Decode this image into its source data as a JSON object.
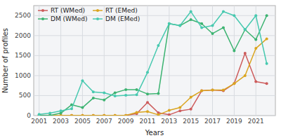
{
  "chart_data": {
    "type": "line",
    "xlabel": "Years",
    "ylabel": "Number of profiles",
    "x": [
      2001,
      2002,
      2003,
      2004,
      2005,
      2006,
      2007,
      2008,
      2009,
      2010,
      2011,
      2012,
      2013,
      2014,
      2015,
      2016,
      2017,
      2018,
      2019,
      2020,
      2021,
      2022
    ],
    "series": [
      {
        "name": "RT (WMed)",
        "color": "#cd5c5c",
        "values": [
          10,
          5,
          5,
          5,
          5,
          5,
          5,
          5,
          5,
          50,
          330,
          70,
          20,
          120,
          160,
          620,
          640,
          620,
          800,
          1560,
          850,
          800
        ]
      },
      {
        "name": "RT (EMed)",
        "color": "#daa520",
        "values": [
          5,
          5,
          5,
          5,
          5,
          5,
          5,
          5,
          5,
          80,
          100,
          20,
          130,
          200,
          460,
          620,
          640,
          640,
          800,
          1000,
          1680,
          1920
        ]
      },
      {
        "name": "DM (WMed)",
        "color": "#3cb371",
        "values": [
          5,
          5,
          60,
          270,
          200,
          440,
          390,
          570,
          650,
          650,
          540,
          550,
          2300,
          2250,
          2400,
          2300,
          2050,
          2200,
          1620,
          2150,
          1900,
          2500
        ]
      },
      {
        "name": "DM (EMed)",
        "color": "#48c9b0",
        "values": [
          30,
          60,
          120,
          170,
          870,
          590,
          570,
          490,
          510,
          520,
          1080,
          1750,
          2300,
          2250,
          2600,
          2200,
          2250,
          2600,
          2500,
          2150,
          2500,
          1300
        ]
      }
    ],
    "xlim": [
      2000.5,
      2022.8
    ],
    "xticks": [
      2001,
      2003,
      2005,
      2007,
      2009,
      2011,
      2013,
      2015,
      2017,
      2019,
      2021
    ],
    "ylim": [
      0,
      2750
    ],
    "yticks": [
      0,
      500,
      1000,
      1500,
      2000,
      2500
    ],
    "marker": "dot",
    "grid": true,
    "legend": "top-left"
  }
}
